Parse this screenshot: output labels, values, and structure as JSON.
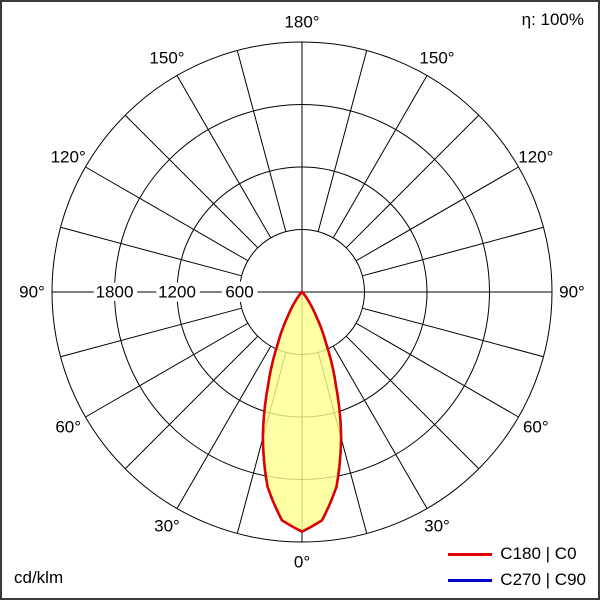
{
  "chart_data": {
    "type": "polar",
    "subtype": "luminous-intensity-distribution",
    "units": "cd/klm",
    "efficiency": "η: 100%",
    "rmax": 2400,
    "grid_color": "#000000",
    "radial_ticks": [
      600,
      1200,
      1800,
      2400
    ],
    "radial_tick_labels": [
      {
        "value": 600,
        "label": "600"
      },
      {
        "value": 1200,
        "label": "1200"
      },
      {
        "value": 1800,
        "label": "1800"
      }
    ],
    "spoke_step_deg": 15,
    "angle_labels": [
      {
        "deg": 0,
        "label": "0°",
        "both_sides": false
      },
      {
        "deg": 30,
        "label": "30°",
        "both_sides": true
      },
      {
        "deg": 60,
        "label": "60°",
        "both_sides": true
      },
      {
        "deg": 90,
        "label": "90°",
        "both_sides": true
      },
      {
        "deg": 120,
        "label": "120°",
        "both_sides": true
      },
      {
        "deg": 150,
        "label": "150°",
        "both_sides": true
      },
      {
        "deg": 180,
        "label": "180°",
        "both_sides": false
      }
    ],
    "series": [
      {
        "name": "C180 | C0",
        "color": "#e00000",
        "fill": "rgba(255,255,140,0.8)",
        "gamma_deg": [
          0,
          5,
          10,
          15,
          20,
          25,
          30,
          35,
          40,
          45,
          50,
          55,
          60,
          90,
          120,
          150,
          180
        ],
        "values": [
          2300,
          2200,
          1900,
          1450,
          950,
          550,
          280,
          120,
          45,
          12,
          3,
          0,
          0,
          0,
          0,
          0,
          0
        ]
      },
      {
        "name": "C270 | C90",
        "color": "#0000cc",
        "fill": "none",
        "gamma_deg": [
          0,
          5,
          10,
          15,
          20,
          25,
          30,
          35,
          40,
          45,
          50,
          55,
          60,
          90,
          120,
          150,
          180
        ],
        "values": [
          2300,
          2200,
          1900,
          1450,
          950,
          550,
          280,
          120,
          45,
          12,
          3,
          0,
          0,
          0,
          0,
          0,
          0
        ]
      }
    ]
  }
}
